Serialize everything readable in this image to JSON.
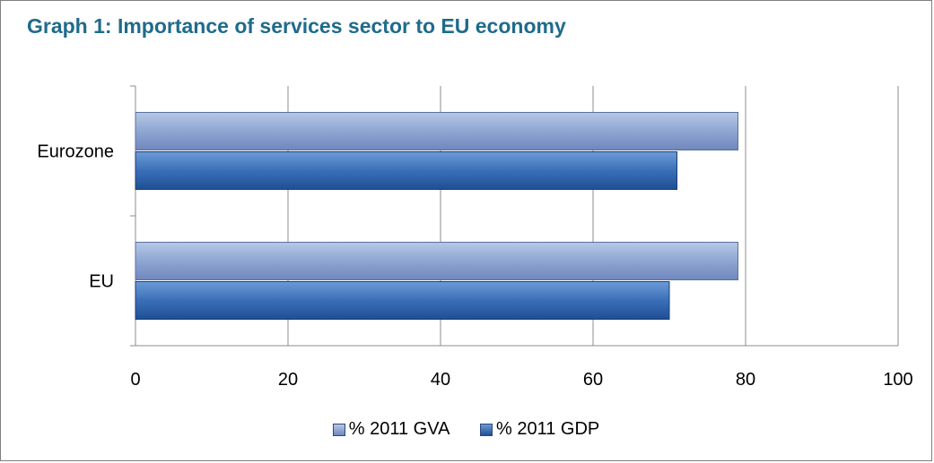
{
  "title": "Graph 1: Importance of services sector to EU economy",
  "colors": {
    "title": "#1f6b8b",
    "gva": "#8fa6d2",
    "gdp": "#3a6fb8"
  },
  "chart_data": {
    "type": "bar",
    "orientation": "horizontal",
    "categories": [
      "Eurozone",
      "EU"
    ],
    "series": [
      {
        "name": "% 2011 GVA",
        "values": [
          79,
          79
        ]
      },
      {
        "name": "% 2011 GDP",
        "values": [
          71,
          70
        ]
      }
    ],
    "xlim": [
      0,
      100
    ],
    "xticks": [
      "0",
      "20",
      "40",
      "60",
      "80",
      "100"
    ],
    "grid": "vertical",
    "legend": "bottom"
  }
}
